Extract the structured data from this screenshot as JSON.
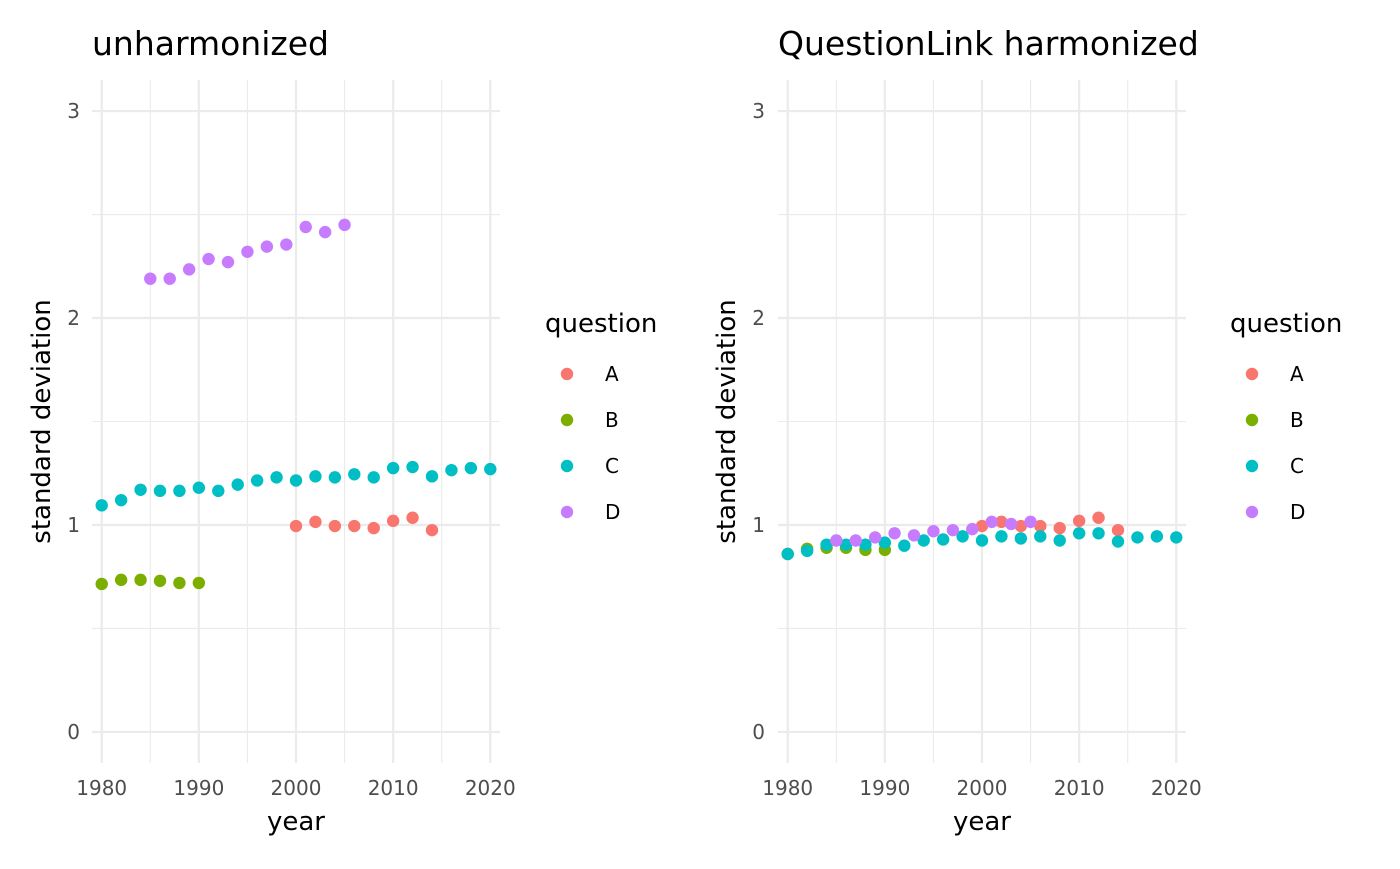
{
  "chart_data": [
    {
      "type": "scatter",
      "title": "unharmonized",
      "xlabel": "year",
      "ylabel": "standard deviation",
      "xlim": [
        1979,
        2021
      ],
      "ylim": [
        -0.15,
        3.15
      ],
      "x_ticks": [
        1980,
        1990,
        2000,
        2010,
        2020
      ],
      "y_ticks": [
        0,
        1,
        2,
        3
      ],
      "grid": true,
      "legend": {
        "title": "question",
        "position": "right"
      },
      "series": [
        {
          "name": "A",
          "color": "#F8766D",
          "x": [
            2000,
            2002,
            2004,
            2006,
            2008,
            2010,
            2012,
            2014
          ],
          "y": [
            0.995,
            1.015,
            0.995,
            0.995,
            0.985,
            1.02,
            1.035,
            0.975
          ]
        },
        {
          "name": "B",
          "color": "#7CAE00",
          "x": [
            1980,
            1982,
            1984,
            1986,
            1988,
            1990
          ],
          "y": [
            0.715,
            0.735,
            0.735,
            0.73,
            0.72,
            0.72
          ]
        },
        {
          "name": "C",
          "color": "#00BFC4",
          "x": [
            1980,
            1982,
            1984,
            1986,
            1988,
            1990,
            1992,
            1994,
            1996,
            1998,
            2000,
            2002,
            2004,
            2006,
            2008,
            2010,
            2012,
            2014,
            2016,
            2018,
            2020
          ],
          "y": [
            1.095,
            1.12,
            1.17,
            1.165,
            1.165,
            1.18,
            1.165,
            1.195,
            1.215,
            1.23,
            1.215,
            1.235,
            1.23,
            1.245,
            1.23,
            1.275,
            1.28,
            1.235,
            1.265,
            1.275,
            1.27
          ]
        },
        {
          "name": "D",
          "color": "#C77CFF",
          "x": [
            1985,
            1987,
            1989,
            1991,
            1993,
            1995,
            1997,
            1999,
            2001,
            2003,
            2005
          ],
          "y": [
            2.19,
            2.19,
            2.235,
            2.285,
            2.27,
            2.32,
            2.345,
            2.355,
            2.44,
            2.415,
            2.45
          ]
        }
      ]
    },
    {
      "type": "scatter",
      "title": "QuestionLink harmonized",
      "xlabel": "year",
      "ylabel": "standard deviation",
      "xlim": [
        1979,
        2021
      ],
      "ylim": [
        -0.15,
        3.15
      ],
      "x_ticks": [
        1980,
        1990,
        2000,
        2010,
        2020
      ],
      "y_ticks": [
        0,
        1,
        2,
        3
      ],
      "grid": true,
      "legend": {
        "title": "question",
        "position": "right"
      },
      "series": [
        {
          "name": "A",
          "color": "#F8766D",
          "x": [
            2000,
            2002,
            2004,
            2006,
            2008,
            2010,
            2012,
            2014
          ],
          "y": [
            0.995,
            1.015,
            0.995,
            0.995,
            0.985,
            1.02,
            1.035,
            0.975
          ]
        },
        {
          "name": "B",
          "color": "#7CAE00",
          "x": [
            1980,
            1982,
            1984,
            1986,
            1988,
            1990
          ],
          "y": [
            0.86,
            0.885,
            0.89,
            0.89,
            0.88,
            0.88
          ]
        },
        {
          "name": "C",
          "color": "#00BFC4",
          "x": [
            1980,
            1982,
            1984,
            1986,
            1988,
            1990,
            1992,
            1994,
            1996,
            1998,
            2000,
            2002,
            2004,
            2006,
            2008,
            2010,
            2012,
            2014,
            2016,
            2018,
            2020
          ],
          "y": [
            0.86,
            0.875,
            0.905,
            0.905,
            0.905,
            0.915,
            0.9,
            0.925,
            0.93,
            0.945,
            0.925,
            0.945,
            0.935,
            0.945,
            0.925,
            0.96,
            0.96,
            0.92,
            0.94,
            0.945,
            0.94
          ]
        },
        {
          "name": "D",
          "color": "#C77CFF",
          "x": [
            1985,
            1987,
            1989,
            1991,
            1993,
            1995,
            1997,
            1999,
            2001,
            2003,
            2005
          ],
          "y": [
            0.925,
            0.925,
            0.94,
            0.96,
            0.95,
            0.97,
            0.975,
            0.98,
            1.015,
            1.005,
            1.015
          ]
        }
      ]
    }
  ]
}
